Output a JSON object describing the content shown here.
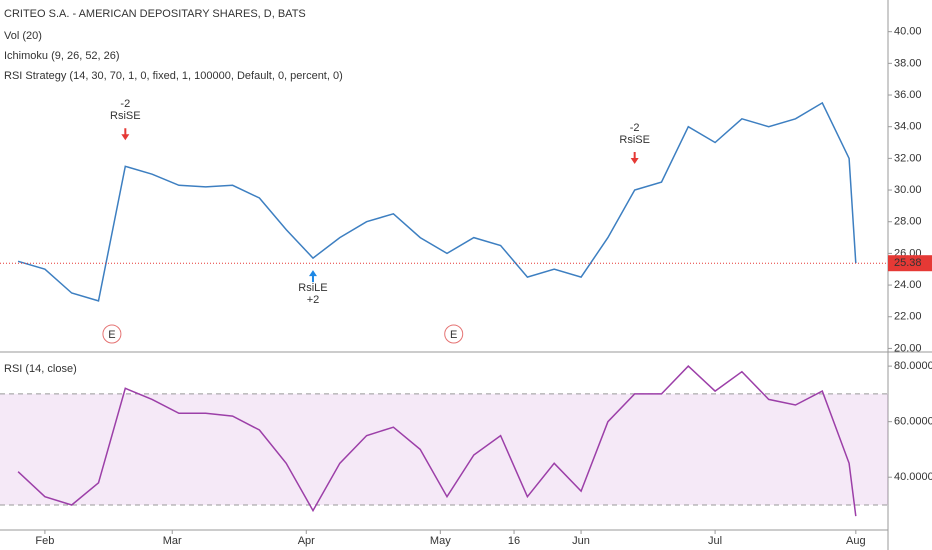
{
  "chart_data": [
    {
      "type": "line",
      "title": "CRITEO S.A. - AMERICAN DEPOSITARY SHARES, D, BATS",
      "indicators": [
        "Vol (20)",
        "Ichimoku (9, 26, 52, 26)",
        "RSI Strategy (14, 30, 70, 1, 0, fixed, 1, 100000, Default, 0, percent, 0)"
      ],
      "x": [
        -4,
        0,
        4,
        8,
        12,
        16,
        20,
        24,
        28,
        32,
        36,
        40,
        44,
        48,
        52,
        56,
        60,
        64,
        68,
        72,
        76,
        80,
        84,
        88,
        92,
        96,
        100,
        104,
        108,
        112,
        116,
        120,
        121
      ],
      "series": [
        {
          "name": "close",
          "color": "#3d7fc1",
          "values": [
            25.5,
            25,
            23.5,
            23,
            31.5,
            31,
            30.3,
            30.2,
            30.3,
            29.5,
            27.5,
            25.7,
            27,
            28,
            28.5,
            27,
            26,
            27,
            26.5,
            24.5,
            25,
            24.5,
            27,
            30,
            30.5,
            34,
            33,
            34.5,
            34,
            34.5,
            35.5,
            32,
            25.38
          ]
        }
      ],
      "xlim": [
        -6.7,
        125.8
      ],
      "ylim": [
        19.9,
        42
      ],
      "yticks": [
        {
          "value": 20,
          "label": "20.00"
        },
        {
          "value": 22,
          "label": "22.00"
        },
        {
          "value": 24,
          "label": "24.00"
        },
        {
          "value": 26,
          "label": "26.00"
        },
        {
          "value": 28,
          "label": "28.00"
        },
        {
          "value": 30,
          "label": "30.00"
        },
        {
          "value": 32,
          "label": "32.00"
        },
        {
          "value": 34,
          "label": "34.00"
        },
        {
          "value": 36,
          "label": "36.00"
        },
        {
          "value": 38,
          "label": "38.00"
        },
        {
          "value": 40,
          "label": "40.00"
        }
      ],
      "last_price": 25.38,
      "signals": [
        {
          "x": 12,
          "labels": [
            "-2",
            "RsiSE"
          ]
        },
        {
          "x": 40,
          "labels": [
            "RsiLE",
            "+2"
          ]
        },
        {
          "x": 88,
          "labels": [
            "-2",
            "RsiSE"
          ]
        }
      ],
      "earnings": [
        {
          "x": 10,
          "label": "E"
        },
        {
          "x": 61,
          "label": "E"
        }
      ]
    },
    {
      "type": "line",
      "title": "RSI (14, close)",
      "x": [
        -4,
        0,
        4,
        8,
        12,
        16,
        20,
        24,
        28,
        32,
        36,
        40,
        44,
        48,
        52,
        56,
        60,
        64,
        68,
        72,
        76,
        80,
        84,
        88,
        92,
        96,
        100,
        104,
        108,
        112,
        116,
        120,
        121
      ],
      "series": [
        {
          "name": "RSI",
          "color": "#9c3fa8",
          "values": [
            42,
            33,
            30,
            38,
            72,
            68,
            63,
            63,
            62,
            57,
            45,
            28,
            45,
            55,
            58,
            50,
            33,
            48,
            55,
            33,
            45,
            35,
            60,
            70,
            70,
            80,
            71,
            78,
            68,
            66,
            71,
            45,
            26
          ]
        }
      ],
      "bands": [
        30,
        70
      ],
      "xlim": [
        -6.7,
        125.8
      ],
      "ylim": [
        21,
        84
      ],
      "yticks": [
        {
          "value": 40,
          "label": "40.0000"
        },
        {
          "value": 60,
          "label": "60.0000"
        },
        {
          "value": 80,
          "label": "80.0000"
        }
      ],
      "xticks": [
        {
          "value": 0,
          "label": "Feb"
        },
        {
          "value": 19,
          "label": "Mar"
        },
        {
          "value": 39,
          "label": "Apr"
        },
        {
          "value": 59,
          "label": "May"
        },
        {
          "value": 70,
          "label": "16"
        },
        {
          "value": 80,
          "label": "Jun"
        },
        {
          "value": 100,
          "label": "Jul"
        },
        {
          "value": 121,
          "label": "Aug"
        }
      ]
    }
  ]
}
